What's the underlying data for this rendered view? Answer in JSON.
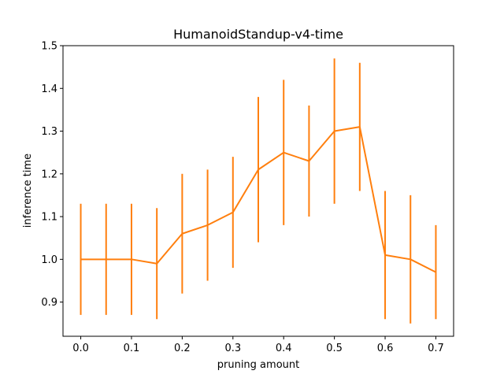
{
  "chart_data": {
    "type": "line",
    "title": "HumanoidStandup-v4-time",
    "xlabel": "pruning amount",
    "ylabel": "inference time",
    "xlim": [
      -0.035,
      0.735
    ],
    "ylim": [
      0.82,
      1.5
    ],
    "xticks": [
      "0.0",
      "0.1",
      "0.2",
      "0.3",
      "0.4",
      "0.5",
      "0.6",
      "0.7"
    ],
    "yticks": [
      "0.9",
      "1.0",
      "1.1",
      "1.2",
      "1.3",
      "1.4",
      "1.5"
    ],
    "grid": false,
    "series": [
      {
        "color": "#ff7f0e",
        "x": [
          0.0,
          0.05,
          0.1,
          0.15,
          0.2,
          0.25,
          0.3,
          0.35,
          0.4,
          0.45,
          0.5,
          0.55,
          0.6,
          0.65,
          0.7
        ],
        "y": [
          1.0,
          1.0,
          1.0,
          0.99,
          1.06,
          1.08,
          1.11,
          1.21,
          1.25,
          1.23,
          1.3,
          1.31,
          1.01,
          1.0,
          0.97
        ],
        "yerr_low": [
          0.87,
          0.87,
          0.87,
          0.86,
          0.92,
          0.95,
          0.98,
          1.04,
          1.08,
          1.1,
          1.13,
          1.16,
          0.86,
          0.85,
          0.86
        ],
        "yerr_high": [
          1.13,
          1.13,
          1.13,
          1.12,
          1.2,
          1.21,
          1.24,
          1.38,
          1.42,
          1.36,
          1.47,
          1.46,
          1.16,
          1.15,
          1.08
        ]
      }
    ]
  }
}
